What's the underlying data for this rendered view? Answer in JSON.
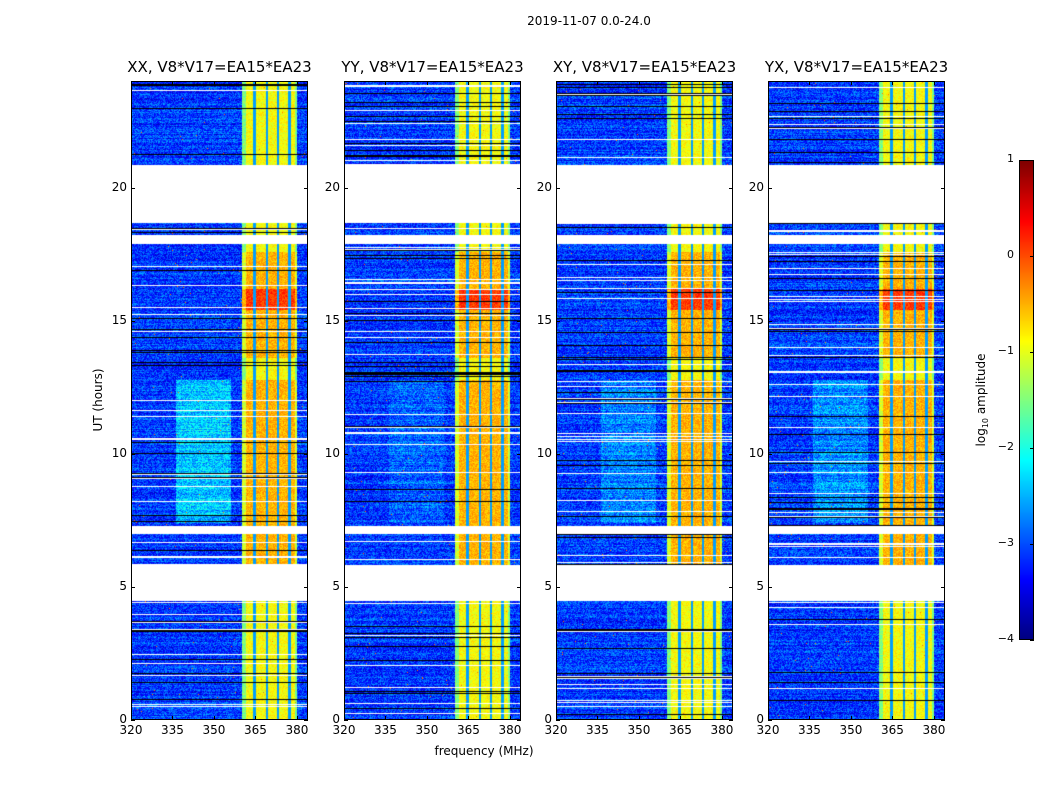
{
  "suptitle": "2019-11-07 0.0-24.0",
  "chart_data": {
    "type": "heatmap",
    "title": "2019-11-07 0.0-24.0",
    "xlabel": "frequency (MHz)",
    "ylabel": "UT (hours)",
    "xlim": [
      320,
      384
    ],
    "ylim": [
      0,
      24
    ],
    "xticks": [
      320,
      335,
      350,
      365,
      380
    ],
    "yticks": [
      0,
      5,
      10,
      15,
      20
    ],
    "panels": [
      {
        "title": "XX, V8*V17=EA15*EA23",
        "seed": 11,
        "cyan_strength": 1.0
      },
      {
        "title": "YY, V8*V17=EA15*EA23",
        "seed": 23,
        "cyan_strength": 0.3
      },
      {
        "title": "XY, V8*V17=EA15*EA23",
        "seed": 37,
        "cyan_strength": 0.5
      },
      {
        "title": "YX, V8*V17=EA15*EA23",
        "seed": 51,
        "cyan_strength": 0.6
      }
    ],
    "colorbar": {
      "label_prefix": "log",
      "label_sub": "10",
      "label_suffix": " amplitude",
      "range": [
        -4,
        1
      ],
      "ticks": [
        "1",
        "0",
        "−1",
        "−2",
        "−3",
        "−4"
      ],
      "tick_values": [
        1,
        0,
        -1,
        -2,
        -3,
        -4
      ],
      "colormap": "jet"
    },
    "features": {
      "background_log_amp": -3.1,
      "strong_band_mhz": [
        360,
        380
      ],
      "strong_band_log_amp": -0.9,
      "subband_edges_mhz": [
        364.5,
        369,
        373,
        377
      ],
      "enhanced_hours": [
        [
          5.8,
          12.8
        ],
        [
          13.6,
          17.6
        ]
      ],
      "peak_hours": [
        15.4,
        16.2
      ],
      "diffuse_band_mhz": [
        336,
        356
      ],
      "diffuse_hours": [
        7.4,
        12.8
      ],
      "flagged_hours": [
        [
          4.5,
          5.85
        ],
        [
          7.0,
          7.3
        ],
        [
          17.9,
          18.25
        ],
        [
          18.7,
          20.85
        ]
      ]
    }
  }
}
